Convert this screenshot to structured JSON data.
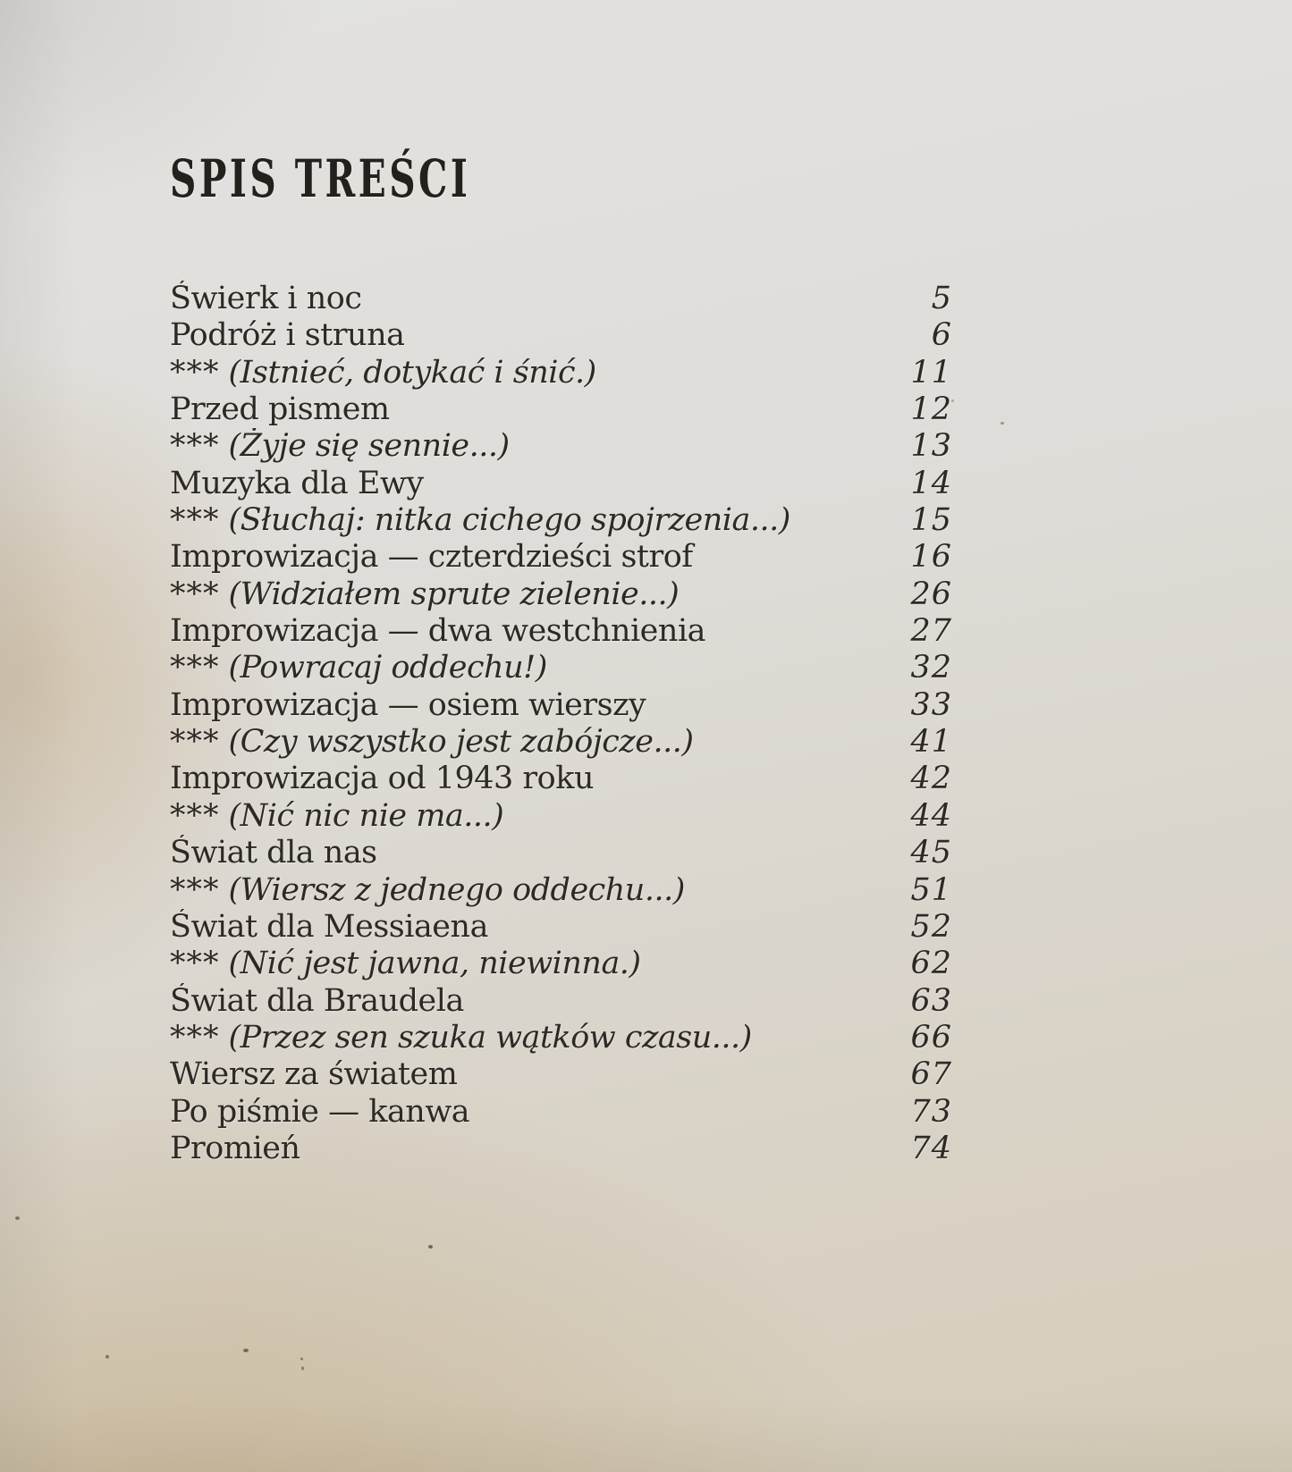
{
  "document": {
    "title": "SPIS TREŚCI",
    "entries": [
      {
        "stars": "",
        "text": "Świerk i noc",
        "page": "5"
      },
      {
        "stars": "",
        "text": "Podróż i struna",
        "page": "6"
      },
      {
        "stars": "***",
        "text": "(Istnieć, dotykać i śnić.)",
        "page": "11"
      },
      {
        "stars": "",
        "text": "Przed pismem",
        "page": "12"
      },
      {
        "stars": "***",
        "text": "(Żyje się sennie...)",
        "page": "13"
      },
      {
        "stars": "",
        "text": "Muzyka dla Ewy",
        "page": "14"
      },
      {
        "stars": "***",
        "text": "(Słuchaj: nitka cichego spojrzenia...)",
        "page": "15"
      },
      {
        "stars": "",
        "text": "Improwizacja — czterdzieści strof",
        "page": "16"
      },
      {
        "stars": "***",
        "text": "(Widziałem sprute zielenie...)",
        "page": "26"
      },
      {
        "stars": "",
        "text": "Improwizacja — dwa westchnienia",
        "page": "27"
      },
      {
        "stars": "***",
        "text": "(Powracaj oddechu!)",
        "page": "32"
      },
      {
        "stars": "",
        "text": "Improwizacja — osiem wierszy",
        "page": "33"
      },
      {
        "stars": "***",
        "text": "(Czy wszystko jest zabójcze...)",
        "page": "41"
      },
      {
        "stars": "",
        "text": "Improwizacja od 1943 roku",
        "page": "42"
      },
      {
        "stars": "***",
        "text": "(Nić nic nie ma...)",
        "page": "44"
      },
      {
        "stars": "",
        "text": "Świat dla nas",
        "page": "45"
      },
      {
        "stars": "***",
        "text": "(Wiersz z jednego oddechu...)",
        "page": "51"
      },
      {
        "stars": "",
        "text": "Świat dla Messiaena",
        "page": "52"
      },
      {
        "stars": "***",
        "text": "(Nić jest jawna, niewinna.)",
        "page": "62"
      },
      {
        "stars": "",
        "text": "Świat dla Braudela",
        "page": "63"
      },
      {
        "stars": "***",
        "text": "(Przez sen szuka wątków czasu...)",
        "page": "66"
      },
      {
        "stars": "",
        "text": "Wiersz za światem",
        "page": "67"
      },
      {
        "stars": "",
        "text": "Po piśmie — kanwa",
        "page": "73"
      },
      {
        "stars": "",
        "text": "Promień",
        "page": "74"
      }
    ]
  }
}
